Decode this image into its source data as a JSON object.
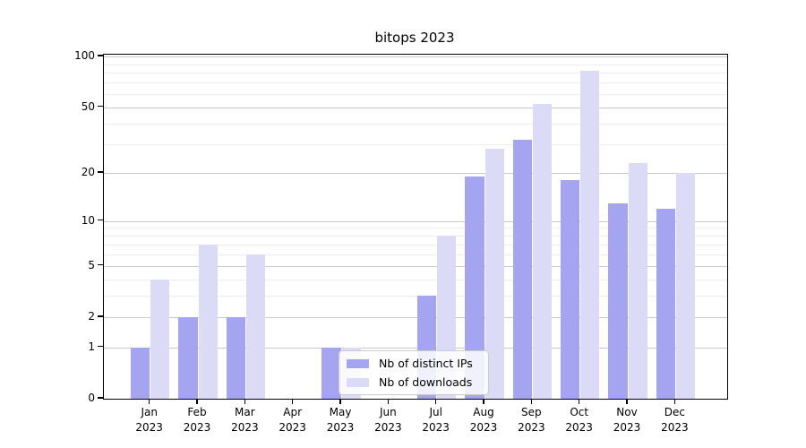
{
  "chart_data": {
    "type": "bar",
    "title": "bitops 2023",
    "categories": [
      "Jan 2023",
      "Feb 2023",
      "Mar 2023",
      "Apr 2023",
      "May 2023",
      "Jun 2023",
      "Jul 2023",
      "Aug 2023",
      "Sep 2023",
      "Oct 2023",
      "Nov 2023",
      "Dec 2023"
    ],
    "series": [
      {
        "name": "Nb of distinct IPs",
        "color": "#a4a4f0",
        "values": [
          1,
          2,
          2,
          0,
          1,
          0,
          3,
          19,
          32,
          18,
          13,
          12
        ]
      },
      {
        "name": "Nb of downloads",
        "color": "#dbdbf8",
        "values": [
          4,
          7,
          6,
          0,
          1,
          0,
          8,
          28,
          52,
          82,
          23,
          20
        ]
      }
    ],
    "y_scale": "log1p",
    "ylim": [
      0,
      100
    ],
    "y_major_ticks": [
      0,
      1,
      2,
      5,
      10,
      20,
      50,
      100
    ],
    "y_minor_ticks": [
      3,
      4,
      6,
      7,
      8,
      9,
      30,
      40,
      60,
      70,
      80,
      90
    ],
    "grid": "horizontal, major and minor",
    "legend_position": "inside lower center",
    "colors": {
      "major_grid": "#c8c8c8",
      "minor_grid": "#ededed",
      "axis": "#000000"
    }
  }
}
